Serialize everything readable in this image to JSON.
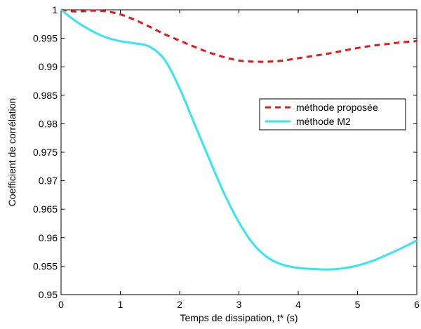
{
  "chart_data": {
    "type": "line",
    "xlabel": "Temps de dissipation, t* (s)",
    "ylabel": "Coefficient de corrélation",
    "xlim": [
      0,
      6
    ],
    "ylim": [
      0.95,
      1.0
    ],
    "x_ticks": [
      "0",
      "1",
      "2",
      "3",
      "4",
      "5",
      "6"
    ],
    "y_ticks": [
      "0.95",
      "0.955",
      "0.96",
      "0.965",
      "0.97",
      "0.975",
      "0.98",
      "0.985",
      "0.99",
      "0.995",
      "1"
    ],
    "grid": false,
    "legend_position": "center-right",
    "series": [
      {
        "name": "méthode proposée",
        "color": "#e41a1a",
        "style": "dashed",
        "x": [
          0,
          0.25,
          0.5,
          0.75,
          1.0,
          1.25,
          1.5,
          1.75,
          2.0,
          2.25,
          2.5,
          2.75,
          3.0,
          3.25,
          3.5,
          3.75,
          4.0,
          4.25,
          4.5,
          4.75,
          5.0,
          5.25,
          5.5,
          5.75,
          6.0
        ],
        "y": [
          1.0,
          0.9997,
          0.99985,
          0.99975,
          0.9992,
          0.9982,
          0.997,
          0.9957,
          0.9946,
          0.9935,
          0.9925,
          0.9917,
          0.9911,
          0.9909,
          0.9909,
          0.9911,
          0.9915,
          0.9919,
          0.9923,
          0.9928,
          0.9933,
          0.9937,
          0.994,
          0.9943,
          0.9945
        ]
      },
      {
        "name": "méthode M2",
        "color": "#33e6f0",
        "style": "solid",
        "x": [
          0,
          0.25,
          0.5,
          0.75,
          1.0,
          1.25,
          1.5,
          1.75,
          2.0,
          2.25,
          2.5,
          2.75,
          3.0,
          3.25,
          3.5,
          3.75,
          4.0,
          4.25,
          4.5,
          4.75,
          5.0,
          5.25,
          5.5,
          5.75,
          6.0
        ],
        "y": [
          1.0,
          0.998,
          0.9964,
          0.9952,
          0.9945,
          0.9941,
          0.9935,
          0.9912,
          0.9862,
          0.98,
          0.9738,
          0.9678,
          0.9627,
          0.9588,
          0.9564,
          0.9552,
          0.9547,
          0.9545,
          0.9544,
          0.9546,
          0.9551,
          0.9559,
          0.957,
          0.9582,
          0.9595
        ]
      }
    ]
  }
}
